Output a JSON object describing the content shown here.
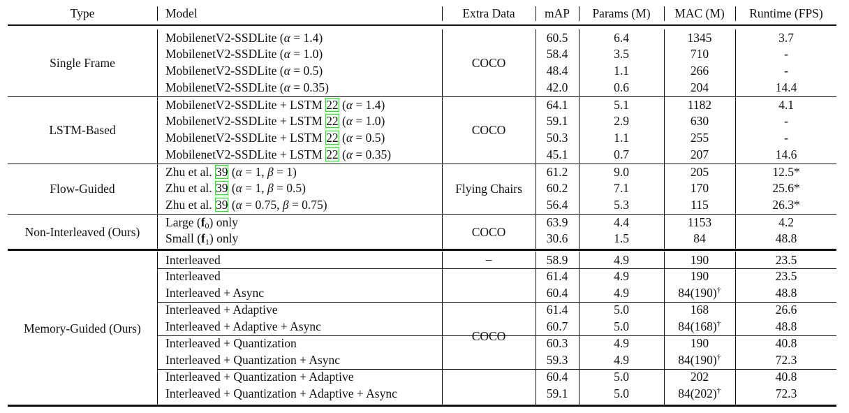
{
  "header": {
    "type": "Type",
    "model": "Model",
    "extra": "Extra Data",
    "map": "mAP",
    "params": "Params (M)",
    "mac": "MAC (M)",
    "runtime": "Runtime (FPS)"
  },
  "groups": [
    {
      "type": "Single Frame",
      "extra": "COCO",
      "rows": [
        {
          "pre": "MobilenetV2-SSDLite (",
          "alpha": "α",
          "post": " = 1.4)",
          "map": "60.5",
          "params": "6.4",
          "mac": "1345",
          "fps": "3.7"
        },
        {
          "pre": "MobilenetV2-SSDLite (",
          "alpha": "α",
          "post": " = 1.0)",
          "map": "58.4",
          "params": "3.5",
          "mac": "710",
          "fps": "-"
        },
        {
          "pre": "MobilenetV2-SSDLite (",
          "alpha": "α",
          "post": " = 0.5)",
          "map": "48.4",
          "params": "1.1",
          "mac": "266",
          "fps": "-"
        },
        {
          "pre": "MobilenetV2-SSDLite (",
          "alpha": "α",
          "post": " = 0.35)",
          "map": "42.0",
          "params": "0.6",
          "mac": "204",
          "fps": "14.4"
        }
      ]
    },
    {
      "type": "LSTM-Based",
      "extra": "COCO",
      "rows": [
        {
          "pre": "MobilenetV2-SSDLite + LSTM ",
          "ref": "22",
          "mid": " (",
          "alpha": "α",
          "post": " = 1.4)",
          "map": "64.1",
          "params": "5.1",
          "mac": "1182",
          "fps": "4.1"
        },
        {
          "pre": "MobilenetV2-SSDLite + LSTM ",
          "ref": "22",
          "mid": " (",
          "alpha": "α",
          "post": " = 1.0)",
          "map": "59.1",
          "params": "2.9",
          "mac": "630",
          "fps": "-"
        },
        {
          "pre": "MobilenetV2-SSDLite + LSTM ",
          "ref": "22",
          "mid": " (",
          "alpha": "α",
          "post": " = 0.5)",
          "map": "50.3",
          "params": "1.1",
          "mac": "255",
          "fps": "-"
        },
        {
          "pre": "MobilenetV2-SSDLite + LSTM ",
          "ref": "22",
          "mid": " (",
          "alpha": "α",
          "post": " = 0.35)",
          "map": "45.1",
          "params": "0.7",
          "mac": "207",
          "fps": "14.6"
        }
      ]
    },
    {
      "type": "Flow-Guided",
      "extra": "Flying Chairs",
      "rows": [
        {
          "pre": "Zhu et al. ",
          "ref": "39",
          "mid": " (",
          "alpha": "α",
          "post": " = 1, ",
          "beta": "β",
          "post2": " = 1)",
          "map": "61.2",
          "params": "9.0",
          "mac": "205",
          "fps": "12.5*"
        },
        {
          "pre": "Zhu et al. ",
          "ref": "39",
          "mid": " (",
          "alpha": "α",
          "post": " = 1, ",
          "beta": "β",
          "post2": " = 0.5)",
          "map": "60.2",
          "params": "7.1",
          "mac": "170",
          "fps": "25.6*"
        },
        {
          "pre": "Zhu et al. ",
          "ref": "39",
          "mid": " (",
          "alpha": "α",
          "post": " = 0.75, ",
          "beta": "β",
          "post2": " = 0.75)",
          "map": "56.4",
          "params": "5.3",
          "mac": "115",
          "fps": "26.3*"
        }
      ]
    },
    {
      "type": "Non-Interleaved (Ours)",
      "extra": "COCO",
      "rows": [
        {
          "pre": "Large (",
          "fsym": "f",
          "fsub": "0",
          "post": ") only",
          "map": "63.9",
          "params": "4.4",
          "mac": "1153",
          "fps": "4.2"
        },
        {
          "pre": "Small (",
          "fsym": "f",
          "fsub": "1",
          "post": ") only",
          "map": "30.6",
          "params": "1.5",
          "mac": "84",
          "fps": "48.8"
        }
      ]
    },
    {
      "type": "Memory-Guided (Ours)",
      "extra_first": "–",
      "extra": "COCO",
      "rows": [
        {
          "pre": "Interleaved",
          "map": "58.9",
          "params": "4.9",
          "mac": "190",
          "fps": "23.5"
        },
        {
          "pre": "Interleaved",
          "map": "61.4",
          "params": "4.9",
          "mac": "190",
          "fps": "23.5"
        },
        {
          "pre": "Interleaved + Async",
          "map": "60.4",
          "params": "4.9",
          "mac": "84(190)",
          "dag": "†",
          "fps": "48.8"
        },
        {
          "pre": "Interleaved + Adaptive",
          "map": "61.4",
          "params": "5.0",
          "mac": "168",
          "fps": "26.6"
        },
        {
          "pre": "Interleaved + Adaptive + Async",
          "map": "60.7",
          "params": "5.0",
          "mac": "84(168)",
          "dag": "†",
          "fps": "48.8"
        },
        {
          "pre": "Interleaved + Quantization",
          "map": "60.3",
          "params": "4.9",
          "mac": "190",
          "fps": "40.8"
        },
        {
          "pre": "Interleaved + Quantization + Async",
          "map": "59.3",
          "params": "4.9",
          "mac": "84(190)",
          "dag": "†",
          "fps": "72.3"
        },
        {
          "pre": "Interleaved + Quantization + Adaptive",
          "map": "60.4",
          "params": "5.0",
          "mac": "202",
          "fps": "40.8"
        },
        {
          "pre": "Interleaved + Quantization + Adaptive + Async",
          "map": "59.1",
          "params": "5.0",
          "mac": "84(202)",
          "dag": "†",
          "fps": "72.3"
        }
      ]
    }
  ]
}
